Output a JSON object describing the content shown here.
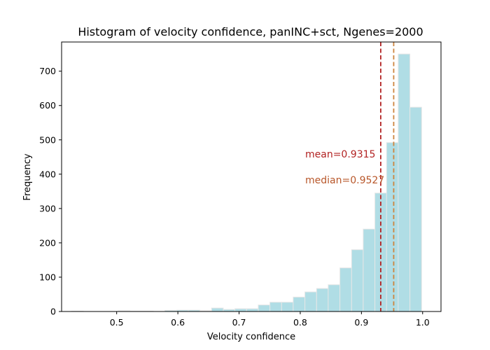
{
  "chart_data": {
    "type": "histogram",
    "title": "Histogram of velocity confidence, panINC+sct, Ngenes=2000",
    "xlabel": "Velocity confidence",
    "ylabel": "Frequency",
    "xlim": [
      0.41,
      1.03
    ],
    "ylim": [
      0,
      785
    ],
    "xticks": [
      0.5,
      0.6,
      0.7,
      0.8,
      0.9,
      1.0
    ],
    "xtick_labels": [
      "0.5",
      "0.6",
      "0.7",
      "0.8",
      "0.9",
      "1.0"
    ],
    "yticks": [
      0,
      100,
      200,
      300,
      400,
      500,
      600,
      700
    ],
    "ytick_labels": [
      "0",
      "100",
      "200",
      "300",
      "400",
      "500",
      "600",
      "700"
    ],
    "bins": {
      "edges": [
        0.4263,
        0.4454,
        0.4644,
        0.4835,
        0.5026,
        0.5216,
        0.5407,
        0.5598,
        0.5788,
        0.5979,
        0.617,
        0.636,
        0.6551,
        0.6742,
        0.6932,
        0.7123,
        0.7314,
        0.7504,
        0.7695,
        0.7885,
        0.8076,
        0.8267,
        0.8457,
        0.8648,
        0.8839,
        0.9029,
        0.922,
        0.9411,
        0.9601,
        0.9792,
        0.9983
      ],
      "counts": [
        1,
        0,
        0,
        0,
        2,
        1,
        1,
        0,
        3,
        4,
        4,
        2,
        10,
        6,
        8,
        8,
        19,
        27,
        27,
        42,
        57,
        67,
        78,
        127,
        180,
        240,
        345,
        492,
        750,
        595
      ]
    },
    "bar_color": "#b0dde5",
    "bar_edge_color": "#e6e6e6",
    "lines": [
      {
        "label": "mean=0.9315",
        "x": 0.9315,
        "color": "#b22222",
        "style": "dashed"
      },
      {
        "label": "median=0.9527",
        "x": 0.9527,
        "color": "#cd853f",
        "style": "dashed"
      }
    ],
    "annotations": [
      {
        "text": "mean=0.9315",
        "color": "#b22222"
      },
      {
        "text": "median=0.9527",
        "color": "#b8572a"
      }
    ],
    "grid": false,
    "legend": "none"
  }
}
